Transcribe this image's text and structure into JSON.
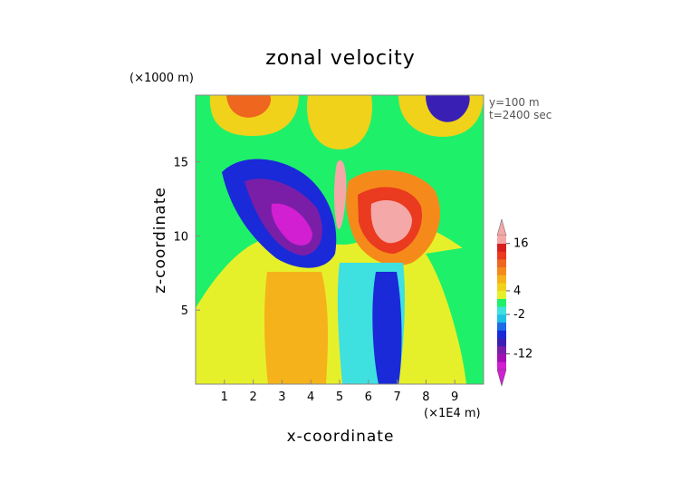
{
  "chart_data": {
    "type": "heatmap",
    "title": "zonal velocity",
    "xlabel": "x-coordinate",
    "ylabel": "z-coordinate",
    "x_scale_label": "(×1E4 m)",
    "y_scale_label": "(×1000 m)",
    "annotations": [
      "y=100 m",
      "t=2400 sec"
    ],
    "xlim": [
      0,
      10
    ],
    "ylim": [
      0,
      19.5
    ],
    "x_ticks": [
      "1",
      "2",
      "3",
      "4",
      "5",
      "6",
      "7",
      "8",
      "9"
    ],
    "y_ticks": [
      "5",
      "10",
      "15"
    ],
    "colorbar": {
      "tick_labels": [
        "16",
        "4",
        "-2",
        "-12"
      ],
      "levels": [
        -16,
        -14,
        -12,
        -10,
        -8,
        -6,
        -4,
        -2,
        0,
        2,
        4,
        6,
        8,
        10,
        12,
        14,
        16,
        18
      ],
      "colors": [
        "#d21fd2",
        "#a40fb4",
        "#7a1ea8",
        "#3a1fb4",
        "#1a2ad8",
        "#1f6ae6",
        "#1fbfe6",
        "#3fe0e0",
        "#1ff06a",
        "#e6f02a",
        "#f0d21a",
        "#f5b21a",
        "#f58a1a",
        "#ef661f",
        "#ea3a1f",
        "#d61f1f",
        "#f4a8a8"
      ]
    }
  }
}
